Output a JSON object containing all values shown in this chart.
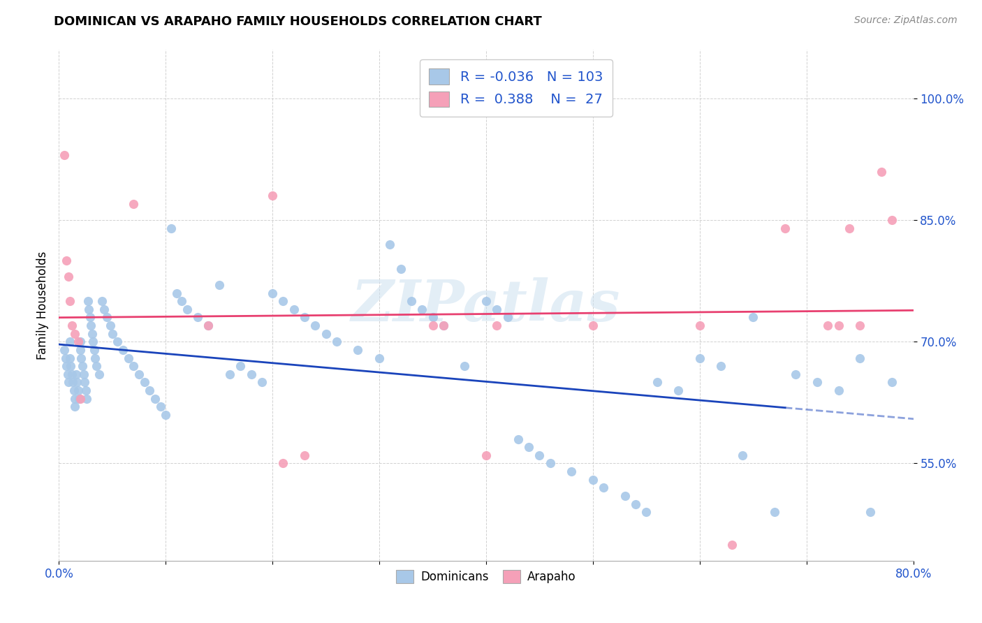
{
  "title": "DOMINICAN VS ARAPAHO FAMILY HOUSEHOLDS CORRELATION CHART",
  "source": "Source: ZipAtlas.com",
  "ylabel": "Family Households",
  "ytick_labels": [
    "55.0%",
    "70.0%",
    "85.0%",
    "100.0%"
  ],
  "ytick_values": [
    0.55,
    0.7,
    0.85,
    1.0
  ],
  "xlim": [
    0.0,
    0.8
  ],
  "ylim": [
    0.43,
    1.06
  ],
  "dominican_color": "#a8c8e8",
  "arapaho_color": "#f5a0b8",
  "dominican_line_color": "#1a44bb",
  "arapaho_line_color": "#e84070",
  "watermark_text": "ZIPatlas",
  "legend_r_dominican": "-0.036",
  "legend_n_dominican": "103",
  "legend_r_arapaho": "0.388",
  "legend_n_arapaho": "27",
  "dominican_x": [
    0.005,
    0.006,
    0.007,
    0.008,
    0.009,
    0.01,
    0.01,
    0.011,
    0.012,
    0.013,
    0.014,
    0.015,
    0.015,
    0.016,
    0.017,
    0.018,
    0.019,
    0.02,
    0.02,
    0.021,
    0.022,
    0.023,
    0.024,
    0.025,
    0.026,
    0.027,
    0.028,
    0.029,
    0.03,
    0.031,
    0.032,
    0.033,
    0.034,
    0.035,
    0.038,
    0.04,
    0.042,
    0.045,
    0.048,
    0.05,
    0.055,
    0.06,
    0.065,
    0.07,
    0.075,
    0.08,
    0.085,
    0.09,
    0.095,
    0.1,
    0.105,
    0.11,
    0.115,
    0.12,
    0.13,
    0.14,
    0.15,
    0.16,
    0.17,
    0.18,
    0.19,
    0.2,
    0.21,
    0.22,
    0.23,
    0.24,
    0.25,
    0.26,
    0.28,
    0.3,
    0.31,
    0.32,
    0.33,
    0.34,
    0.35,
    0.36,
    0.38,
    0.4,
    0.41,
    0.42,
    0.43,
    0.44,
    0.45,
    0.46,
    0.48,
    0.5,
    0.51,
    0.53,
    0.54,
    0.55,
    0.56,
    0.58,
    0.6,
    0.62,
    0.64,
    0.65,
    0.67,
    0.69,
    0.71,
    0.73,
    0.75,
    0.76,
    0.78
  ],
  "dominican_y": [
    0.69,
    0.68,
    0.67,
    0.66,
    0.65,
    0.7,
    0.68,
    0.67,
    0.66,
    0.65,
    0.64,
    0.63,
    0.62,
    0.66,
    0.65,
    0.64,
    0.63,
    0.7,
    0.69,
    0.68,
    0.67,
    0.66,
    0.65,
    0.64,
    0.63,
    0.75,
    0.74,
    0.73,
    0.72,
    0.71,
    0.7,
    0.69,
    0.68,
    0.67,
    0.66,
    0.75,
    0.74,
    0.73,
    0.72,
    0.71,
    0.7,
    0.69,
    0.68,
    0.67,
    0.66,
    0.65,
    0.64,
    0.63,
    0.62,
    0.61,
    0.84,
    0.76,
    0.75,
    0.74,
    0.73,
    0.72,
    0.77,
    0.66,
    0.67,
    0.66,
    0.65,
    0.76,
    0.75,
    0.74,
    0.73,
    0.72,
    0.71,
    0.7,
    0.69,
    0.68,
    0.82,
    0.79,
    0.75,
    0.74,
    0.73,
    0.72,
    0.67,
    0.75,
    0.74,
    0.73,
    0.58,
    0.57,
    0.56,
    0.55,
    0.54,
    0.53,
    0.52,
    0.51,
    0.5,
    0.49,
    0.65,
    0.64,
    0.68,
    0.67,
    0.56,
    0.73,
    0.49,
    0.66,
    0.65,
    0.64,
    0.68,
    0.49,
    0.65
  ],
  "arapaho_x": [
    0.005,
    0.007,
    0.009,
    0.01,
    0.012,
    0.015,
    0.018,
    0.02,
    0.07,
    0.14,
    0.2,
    0.21,
    0.23,
    0.35,
    0.36,
    0.4,
    0.41,
    0.5,
    0.6,
    0.63,
    0.68,
    0.72,
    0.73,
    0.74,
    0.75,
    0.77,
    0.78
  ],
  "arapaho_y": [
    0.93,
    0.8,
    0.78,
    0.75,
    0.72,
    0.71,
    0.7,
    0.63,
    0.87,
    0.72,
    0.88,
    0.55,
    0.56,
    0.72,
    0.72,
    0.56,
    0.72,
    0.72,
    0.72,
    0.45,
    0.84,
    0.72,
    0.72,
    0.84,
    0.72,
    0.91,
    0.85
  ]
}
